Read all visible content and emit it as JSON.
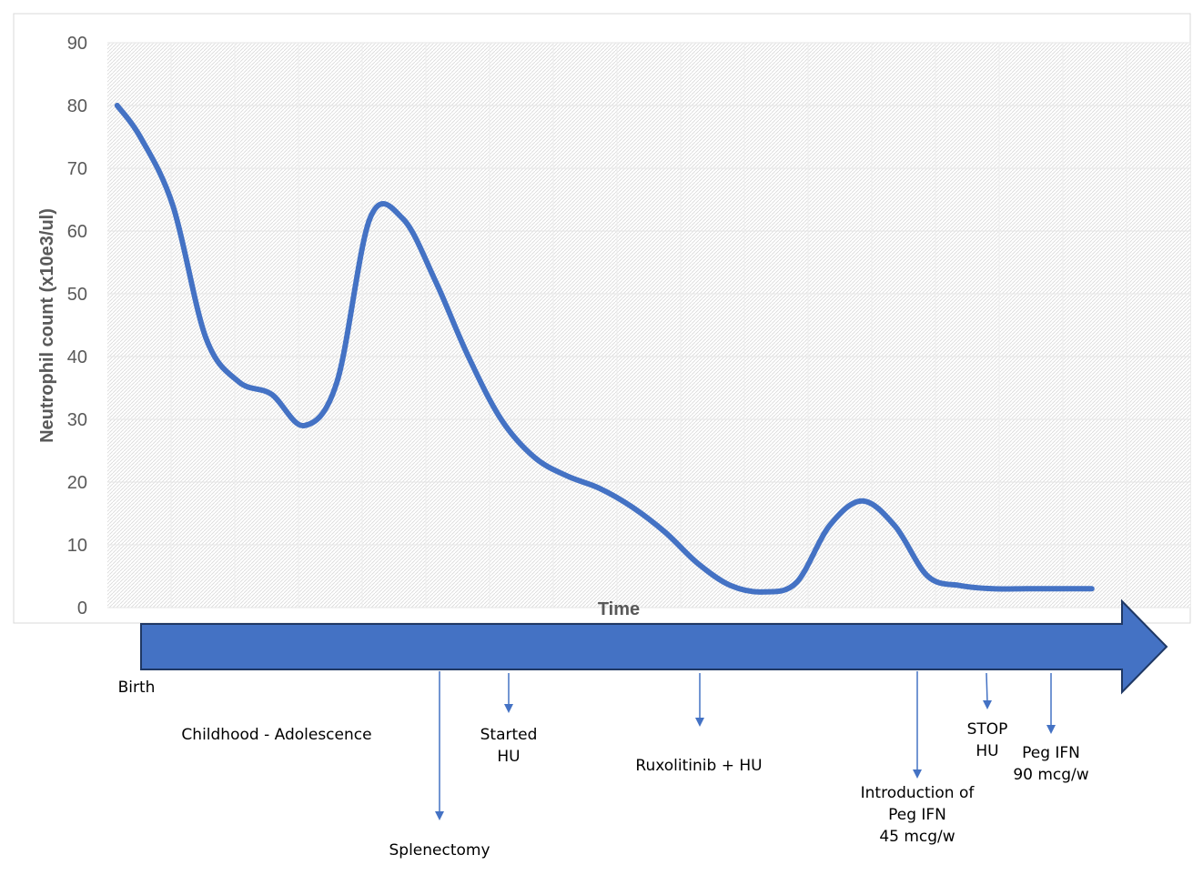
{
  "chart_data": {
    "type": "line",
    "title": "",
    "xlabel": "Time",
    "ylabel": "Neutrophil count (x10e3/ul)",
    "ylim": [
      0,
      90
    ],
    "yticks": [
      0,
      10,
      20,
      30,
      40,
      50,
      60,
      70,
      80,
      90
    ],
    "grid": true,
    "colors": {
      "line": "#4472C4",
      "arrow_fill": "#4472C4",
      "arrow_stroke": "#1F3864",
      "markers": "#4472C4"
    },
    "series": [
      {
        "name": "",
        "x": [
          0.3,
          1,
          2,
          3,
          4,
          5,
          6,
          7,
          8,
          9,
          10,
          11,
          12,
          13,
          14,
          15,
          16,
          17,
          18,
          19,
          20,
          21,
          22,
          23,
          24,
          25,
          26,
          27,
          28,
          29,
          30
        ],
        "values": [
          80,
          75,
          64,
          43,
          36,
          34,
          29,
          36,
          62,
          62,
          52,
          40,
          30,
          24,
          21,
          19,
          16,
          12,
          7,
          3.5,
          2.5,
          4,
          13,
          17,
          13,
          5,
          3.5,
          3,
          3,
          3,
          3
        ]
      }
    ]
  },
  "timeline": {
    "events": [
      {
        "id": "birth",
        "lines": [
          "Birth"
        ]
      },
      {
        "id": "childhood",
        "lines": [
          "Childhood - Adolescence"
        ]
      },
      {
        "id": "splenectomy",
        "lines": [
          "Splenectomy"
        ]
      },
      {
        "id": "started-hu",
        "lines": [
          "Started",
          "HU"
        ]
      },
      {
        "id": "ruxolitinib",
        "lines": [
          "Ruxolitinib + HU"
        ]
      },
      {
        "id": "peg-ifn-45",
        "lines": [
          "Introduction of",
          "Peg IFN",
          "45 mcg/w"
        ]
      },
      {
        "id": "stop-hu",
        "lines": [
          "STOP",
          "HU"
        ]
      },
      {
        "id": "peg-ifn-90",
        "lines": [
          "Peg IFN",
          "90 mcg/w"
        ]
      }
    ]
  }
}
